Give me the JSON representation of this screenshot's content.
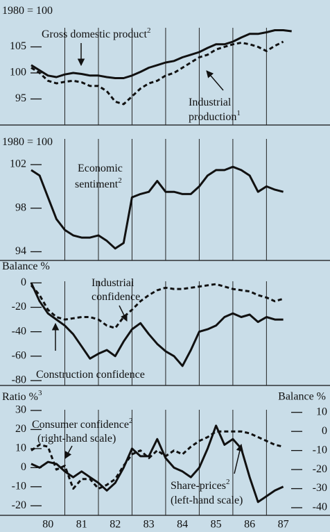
{
  "chart_data": [
    {
      "type": "line",
      "ylabel": "1980 = 100",
      "x": [
        1980,
        1980.25,
        1980.5,
        1980.75,
        1981,
        1981.25,
        1981.5,
        1981.75,
        1982,
        1982.25,
        1982.5,
        1982.75,
        1983,
        1983.25,
        1983.5,
        1983.75,
        1984,
        1984.25,
        1984.5,
        1984.75,
        1985,
        1985.25,
        1985.5,
        1985.75,
        1986,
        1986.25,
        1986.5,
        1986.75,
        1987,
        1987.25,
        1987.5,
        1987.75
      ],
      "xlim": [
        1980,
        1987.9
      ],
      "xgrid": [
        1981,
        1982,
        1983,
        1984,
        1985,
        1986,
        1987
      ],
      "ylim": [
        90,
        110
      ],
      "yticks": [
        95,
        100,
        105
      ],
      "series": [
        {
          "name": "Gross domestic product",
          "color": "#111111",
          "dash": false,
          "values": [
            101.5,
            100.5,
            99.5,
            99.2,
            99.7,
            100,
            99.8,
            99.5,
            99.5,
            99.2,
            99,
            99,
            99.5,
            100.2,
            101,
            101.5,
            102,
            102.3,
            103,
            103.5,
            104,
            104.8,
            105.5,
            105.5,
            106,
            106.8,
            107.5,
            107.5,
            107.8,
            108.2,
            108.2,
            108
          ]
        },
        {
          "name": "Industrial production",
          "color": "#111111",
          "dash": true,
          "values": [
            101,
            100,
            98.5,
            98,
            98.3,
            98.5,
            98.2,
            97.5,
            97.5,
            96.5,
            94.5,
            94,
            95.5,
            97,
            98,
            98.5,
            99.5,
            100,
            101,
            102,
            103,
            103.5,
            104.5,
            105,
            105.5,
            105.8,
            105.5,
            105,
            104.2,
            105.2,
            106,
            null
          ]
        }
      ],
      "annotations": [
        {
          "text": "Gross domestic product",
          "sup": "2"
        },
        {
          "text": "Industrial"
        },
        {
          "text": "production",
          "sup": "1"
        }
      ]
    },
    {
      "type": "line",
      "ylabel": "1980 = 100",
      "x": [
        1980,
        1980.25,
        1980.5,
        1980.75,
        1981,
        1981.25,
        1981.5,
        1981.75,
        1982,
        1982.25,
        1982.5,
        1982.75,
        1983,
        1983.25,
        1983.5,
        1983.75,
        1984,
        1984.25,
        1984.5,
        1984.75,
        1985,
        1985.25,
        1985.5,
        1985.75,
        1986,
        1986.25,
        1986.5,
        1986.75,
        1987,
        1987.25,
        1987.5,
        1987.75
      ],
      "xlim": [
        1980,
        1987.9
      ],
      "xgrid": [
        1981,
        1982,
        1983,
        1984,
        1985,
        1986,
        1987
      ],
      "ylim": [
        93.2,
        105
      ],
      "yticks": [
        94,
        98,
        102
      ],
      "series": [
        {
          "name": "Economic sentiment",
          "color": "#111111",
          "dash": false,
          "values": [
            101.5,
            101,
            99,
            97,
            96,
            95.5,
            95.3,
            95.3,
            95.5,
            95,
            94.3,
            94.8,
            99,
            99.3,
            99.5,
            100.5,
            99.5,
            99.5,
            99.3,
            99.3,
            100,
            101,
            101.5,
            101.5,
            101.8,
            101.5,
            101,
            99.5,
            100,
            99.7,
            99.5,
            null
          ]
        }
      ],
      "annotations": [
        {
          "text": "Economic"
        },
        {
          "text": "sentiment",
          "sup": "2"
        }
      ]
    },
    {
      "type": "line",
      "ylabel": "Balance %",
      "x": [
        1980,
        1980.25,
        1980.5,
        1980.75,
        1981,
        1981.25,
        1981.5,
        1981.75,
        1982,
        1982.25,
        1982.5,
        1982.75,
        1983,
        1983.25,
        1983.5,
        1983.75,
        1984,
        1984.25,
        1984.5,
        1984.75,
        1985,
        1985.25,
        1985.5,
        1985.75,
        1986,
        1986.25,
        1986.5,
        1986.75,
        1987,
        1987.25,
        1987.5,
        1987.75
      ],
      "xlim": [
        1980,
        1987.9
      ],
      "xgrid": [
        1981,
        1982,
        1983,
        1984,
        1985,
        1986,
        1987
      ],
      "ylim": [
        -84,
        7
      ],
      "yticks": [
        0,
        -20,
        -40,
        -60,
        -80
      ],
      "series": [
        {
          "name": "Industrial confidence",
          "color": "#111111",
          "dash": true,
          "values": [
            -2,
            -10,
            -22,
            -28,
            -30,
            -29,
            -28,
            -28,
            -30,
            -35,
            -37,
            -28,
            -22,
            -15,
            -10,
            -6,
            -4,
            -5,
            -5,
            -4,
            -3,
            -2,
            -1,
            -3,
            -5,
            -6,
            -7,
            -10,
            -12,
            -15,
            -13,
            null
          ]
        },
        {
          "name": "Construction confidence",
          "color": "#111111",
          "dash": false,
          "values": [
            0,
            -15,
            -25,
            -30,
            -35,
            -42,
            -52,
            -62,
            -58,
            -55,
            -60,
            -48,
            -38,
            -33,
            -42,
            -50,
            -56,
            -60,
            -68,
            -55,
            -40,
            -38,
            -35,
            -28,
            -25,
            -28,
            -26,
            -32,
            -28,
            -30,
            -30,
            null
          ]
        }
      ],
      "annotations": [
        {
          "text": "Industrial"
        },
        {
          "text": "confidence"
        },
        {
          "text": "Construction confidence"
        }
      ]
    },
    {
      "type": "line",
      "ylabel": "Ratio %",
      "ylabel_sup": "3",
      "y2label": "Balance %",
      "x": [
        1980,
        1980.25,
        1980.5,
        1980.75,
        1981,
        1981.25,
        1981.5,
        1981.75,
        1982,
        1982.25,
        1982.5,
        1982.75,
        1983,
        1983.25,
        1983.5,
        1983.75,
        1984,
        1984.25,
        1984.5,
        1984.75,
        1985,
        1985.25,
        1985.5,
        1985.75,
        1986,
        1986.25,
        1986.5,
        1986.75,
        1987,
        1987.25,
        1987.5,
        1987.75
      ],
      "xlim": [
        1980,
        1987.9
      ],
      "xgrid": [
        1981,
        1982,
        1983,
        1984,
        1985,
        1986,
        1987
      ],
      "xticks": [
        {
          "value": 1980.5,
          "label": "80"
        },
        {
          "value": 1981.5,
          "label": "81"
        },
        {
          "value": 1982.5,
          "label": "82"
        },
        {
          "value": 1983.5,
          "label": "83"
        },
        {
          "value": 1984.5,
          "label": "84"
        },
        {
          "value": 1985.5,
          "label": "85"
        },
        {
          "value": 1986.5,
          "label": "86"
        },
        {
          "value": 1987.5,
          "label": "87"
        }
      ],
      "ylim": [
        -25,
        34
      ],
      "yticks": [
        30,
        20,
        10,
        0,
        -10,
        -20
      ],
      "y2lim": [
        -44,
        15
      ],
      "y2ticks": [
        10,
        0,
        -10,
        -20,
        -30,
        -40
      ],
      "series": [
        {
          "name": "Share-prices",
          "color": "#111111",
          "dash": false,
          "axis": "y",
          "values": [
            2,
            0,
            3,
            2,
            -2,
            -5,
            -2,
            -5,
            -8,
            -12,
            -8,
            0,
            10,
            6,
            6,
            15,
            5,
            0,
            -2,
            -5,
            0,
            10,
            22,
            12,
            15,
            10,
            -5,
            -18,
            -15,
            -12,
            -10,
            null
          ]
        },
        {
          "name": "Consumer confidence",
          "color": "#111111",
          "dash": true,
          "axis": "y2",
          "values": [
            -10,
            -7,
            -8,
            -20,
            -18,
            -30,
            -25,
            -25,
            -30,
            -28,
            -25,
            -18,
            -12,
            -10,
            -14,
            -10,
            -13,
            -10,
            -12,
            -8,
            -5,
            -3,
            0,
            0,
            0,
            0,
            -1,
            -3,
            -5,
            -7,
            -8,
            null
          ]
        }
      ],
      "annotations": [
        {
          "text": "Consumer confidence",
          "sup": "2"
        },
        {
          "text": "(right-hand scale)"
        },
        {
          "text": "Share-prices",
          "sup": "2"
        },
        {
          "text": "(left-hand scale)"
        }
      ]
    }
  ]
}
